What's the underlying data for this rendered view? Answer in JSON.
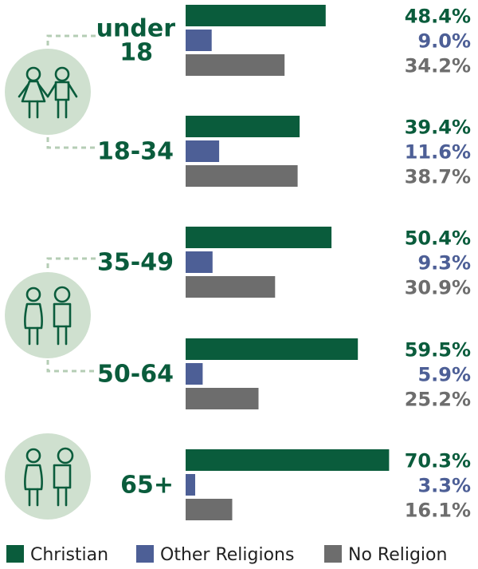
{
  "colors": {
    "christian": "#0a5c3c",
    "other": "#4d5f96",
    "none": "#6d6d6d",
    "circle": "#cfe0cf",
    "icon_stroke": "#0a5c3c",
    "connector": "#b5cdb5"
  },
  "chart_data": {
    "type": "bar",
    "orientation": "horizontal",
    "categories": [
      [
        "under",
        "18"
      ],
      [
        "18-34"
      ],
      [
        "35-49"
      ],
      [
        "50-64"
      ],
      [
        "65+"
      ]
    ],
    "series": [
      {
        "name": "Christian",
        "values": [
          48.4,
          39.4,
          50.4,
          59.5,
          70.3
        ],
        "labels": [
          "48.4%",
          "39.4%",
          "50.4%",
          "59.5%",
          "70.3%"
        ]
      },
      {
        "name": "Other Religions",
        "values": [
          9.0,
          11.6,
          9.3,
          5.9,
          3.3
        ],
        "labels": [
          "9.0%",
          "11.6%",
          "9.3%",
          "5.9%",
          "3.3%"
        ]
      },
      {
        "name": "No Religion",
        "values": [
          34.2,
          38.7,
          30.9,
          25.2,
          16.1
        ],
        "labels": [
          "34.2%",
          "38.7%",
          "30.9%",
          "25.2%",
          "16.1%"
        ]
      }
    ],
    "unit": "%",
    "legend_position": "bottom",
    "grid": false,
    "icons": [
      "children-icon",
      "adults-icon",
      "seniors-icon"
    ]
  }
}
